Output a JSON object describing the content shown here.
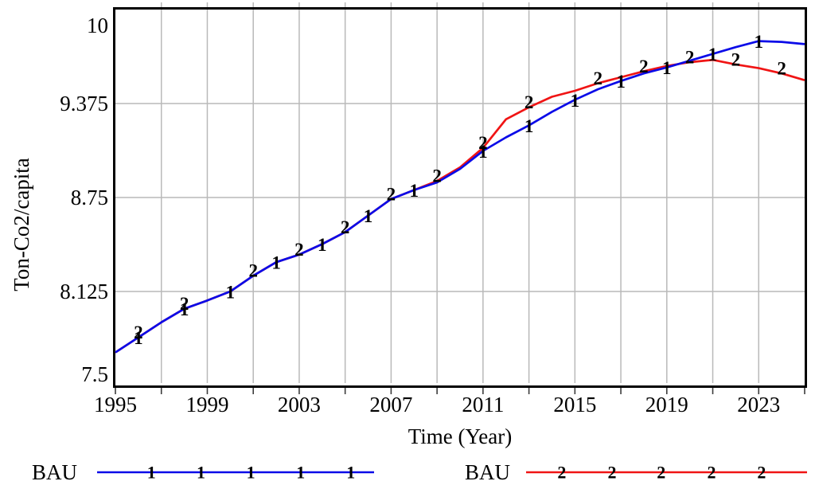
{
  "figure": {
    "y_axis_title": "Ton-Co2/capita",
    "x_axis_title": "Time (Year)"
  },
  "legend": {
    "items": [
      {
        "label": "BAU",
        "marker": "1",
        "color": "#0b0be8"
      },
      {
        "label": "BAU",
        "marker": "2",
        "color": "#f01414"
      }
    ]
  },
  "colors": {
    "series1_blue": "#0b0be8",
    "series2_red": "#f01414",
    "gridline_gray": "#b9b9b9",
    "axis_black": "#000000"
  },
  "chart_data": {
    "type": "line",
    "title": "",
    "xlabel": "Time (Year)",
    "ylabel": "Ton-Co2/capita",
    "xlim": [
      1995,
      2025
    ],
    "ylim": [
      7.5,
      10
    ],
    "grid": true,
    "x": [
      1995,
      1996,
      1997,
      1998,
      1999,
      2000,
      2001,
      2002,
      2003,
      2004,
      2005,
      2006,
      2007,
      2008,
      2009,
      2010,
      2011,
      2012,
      2013,
      2014,
      2015,
      2016,
      2017,
      2018,
      2019,
      2020,
      2021,
      2022,
      2023,
      2024,
      2025
    ],
    "series": [
      {
        "name": "BAU",
        "marker": "1",
        "color": "#0b0be8",
        "values": [
          7.72,
          7.82,
          7.92,
          8.01,
          8.065,
          8.125,
          8.23,
          8.32,
          8.37,
          8.44,
          8.52,
          8.63,
          8.74,
          8.8,
          8.85,
          8.94,
          9.06,
          9.15,
          9.23,
          9.32,
          9.4,
          9.47,
          9.525,
          9.575,
          9.615,
          9.66,
          9.705,
          9.75,
          9.79,
          9.785,
          9.77
        ],
        "marker_years": [
          1996,
          1998,
          2000,
          2002,
          2004,
          2006,
          2008,
          2011,
          2013,
          2015,
          2017,
          2019,
          2021,
          2023
        ]
      },
      {
        "name": "BAU",
        "marker": "2",
        "color": "#f01414",
        "values": [
          7.72,
          7.82,
          7.92,
          8.01,
          8.065,
          8.125,
          8.23,
          8.32,
          8.37,
          8.44,
          8.52,
          8.63,
          8.74,
          8.8,
          8.86,
          8.95,
          9.08,
          9.27,
          9.35,
          9.42,
          9.46,
          9.51,
          9.55,
          9.59,
          9.625,
          9.65,
          9.665,
          9.635,
          9.61,
          9.575,
          9.53
        ],
        "marker_years": [
          1996,
          1998,
          2001,
          2003,
          2005,
          2007,
          2009,
          2011,
          2013,
          2016,
          2018,
          2020,
          2022,
          2024
        ]
      }
    ],
    "y_tick_values": [
      10,
      9.375,
      8.75,
      8.125,
      7.5
    ],
    "y_tick_labels": [
      "10",
      "9.375",
      "8.75",
      "8.125",
      "7.5"
    ],
    "y_gridline_values": [
      9.375,
      8.75,
      8.125
    ],
    "x_label_years": [
      1995,
      1999,
      2003,
      2007,
      2011,
      2015,
      2019,
      2023
    ],
    "x_gridline_years": [
      1997,
      1999,
      2001,
      2003,
      2005,
      2007,
      2009,
      2011,
      2013,
      2015,
      2017,
      2019,
      2021,
      2023
    ],
    "x_tick_step": 2,
    "legend_position": "bottom"
  }
}
